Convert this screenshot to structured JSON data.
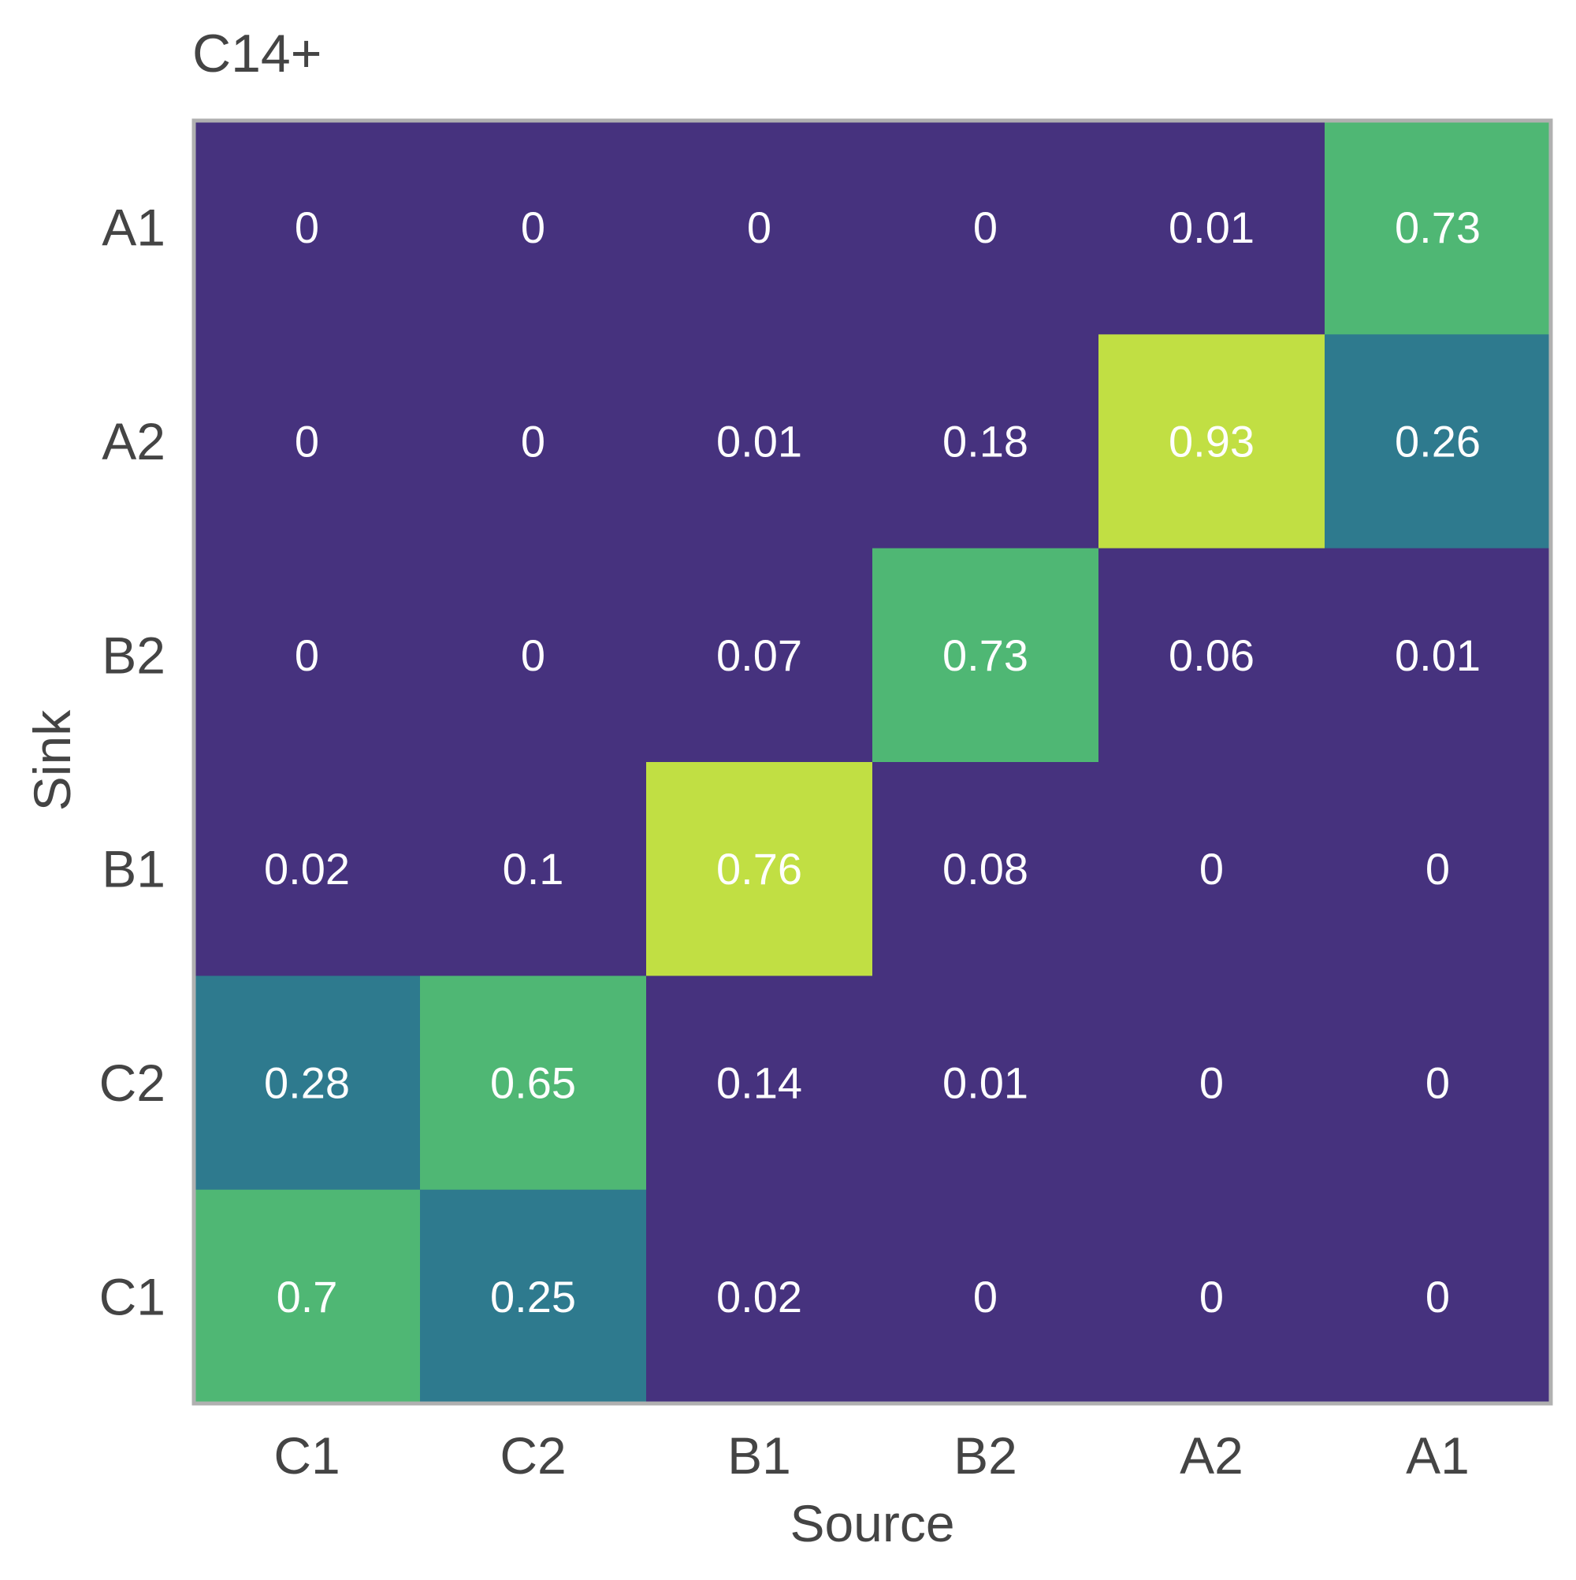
{
  "chart_data": {
    "type": "heatmap",
    "title": "C14+",
    "xlabel": "Source",
    "ylabel": "Sink",
    "x_categories": [
      "C1",
      "C2",
      "B1",
      "B2",
      "A2",
      "A1"
    ],
    "y_categories": [
      "A1",
      "A2",
      "B2",
      "B1",
      "C2",
      "C1"
    ],
    "values": [
      [
        0,
        0,
        0,
        0,
        0.01,
        0.73
      ],
      [
        0,
        0,
        0.01,
        0.18,
        0.93,
        0.26
      ],
      [
        0,
        0,
        0.07,
        0.73,
        0.06,
        0.01
      ],
      [
        0.02,
        0.1,
        0.76,
        0.08,
        0,
        0
      ],
      [
        0.28,
        0.65,
        0.14,
        0.01,
        0,
        0
      ],
      [
        0.7,
        0.25,
        0.02,
        0,
        0,
        0
      ]
    ],
    "value_labels": [
      [
        "0",
        "0",
        "0",
        "0",
        "0.01",
        "0.73"
      ],
      [
        "0",
        "0",
        "0.01",
        "0.18",
        "0.93",
        "0.26"
      ],
      [
        "0",
        "0",
        "0.07",
        "0.73",
        "0.06",
        "0.01"
      ],
      [
        "0.02",
        "0.1",
        "0.76",
        "0.08",
        "0",
        "0"
      ],
      [
        "0.28",
        "0.65",
        "0.14",
        "0.01",
        "0",
        "0"
      ],
      [
        "0.7",
        "0.25",
        "0.02",
        "0",
        "0",
        "0"
      ]
    ],
    "colormap": "viridis (discrete)",
    "colors": {
      "low": "#46327e",
      "mid": "#2e7a8e",
      "high": "#4fb774",
      "top": "#c1df43",
      "cell_text": "#ffffff",
      "axis_text": "#444444",
      "border": "#b0b0b0"
    },
    "grid": false,
    "legend": "none"
  }
}
